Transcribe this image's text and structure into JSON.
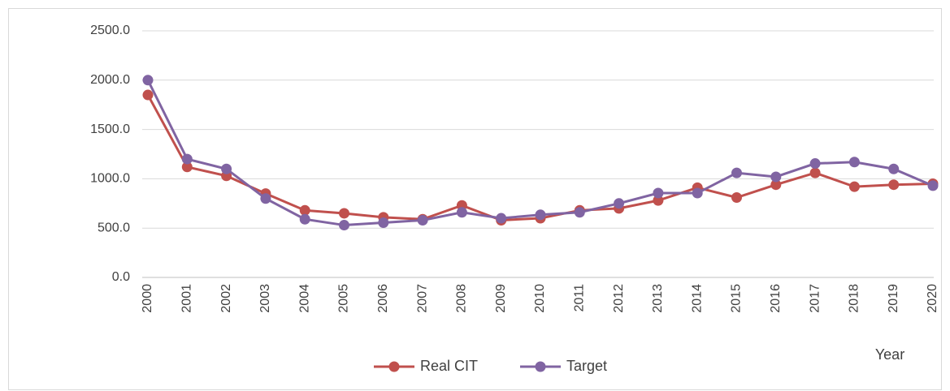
{
  "chart_data": {
    "type": "line",
    "x_label": "Year",
    "categories": [
      "2000",
      "2001",
      "2002",
      "2003",
      "2004",
      "2005",
      "2006",
      "2007",
      "2008",
      "2009",
      "2010",
      "2011",
      "2012",
      "2013",
      "2014",
      "2015",
      "2016",
      "2017",
      "2018",
      "2019",
      "2020"
    ],
    "series": [
      {
        "name": "Real CIT",
        "color": "#c0504d",
        "values": [
          1850,
          1120,
          1030,
          850,
          680,
          650,
          610,
          590,
          730,
          580,
          600,
          680,
          700,
          780,
          910,
          810,
          940,
          1060,
          920,
          940,
          950
        ]
      },
      {
        "name": "Target",
        "color": "#8064a2",
        "values": [
          2000,
          1200,
          1100,
          800,
          590,
          530,
          555,
          580,
          660,
          600,
          635,
          660,
          750,
          855,
          855,
          1060,
          1020,
          1155,
          1170,
          1100,
          930
        ]
      }
    ],
    "ylim": [
      0,
      2500
    ],
    "yticks": [
      {
        "value": 0,
        "label": "0.0"
      },
      {
        "value": 500,
        "label": "500.0"
      },
      {
        "value": 1000,
        "label": "1000.0"
      },
      {
        "value": 1500,
        "label": "1500.0"
      },
      {
        "value": 2000,
        "label": "2000.0"
      },
      {
        "value": 2500,
        "label": "2500.0"
      }
    ],
    "grid": true,
    "legend": "bottom"
  }
}
